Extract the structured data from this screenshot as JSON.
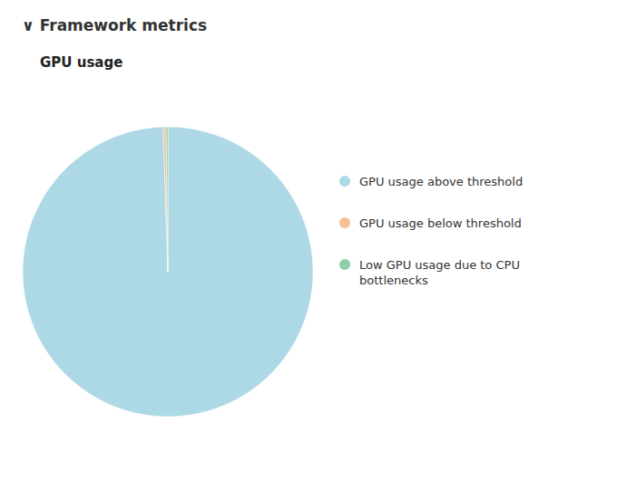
{
  "chart_data": {
    "type": "pie",
    "title": "GPU usage",
    "subtitle": "∨  Framework metrics",
    "categories": [
      "GPU usage above threshold",
      "GPU usage below threshold",
      "Low GPU usage due to CPU\nbottlenecks"
    ],
    "values": [
      99.5,
      0.3,
      0.2
    ],
    "colors": [
      "#add8e6",
      "#f5c096",
      "#8fcea8"
    ],
    "legend": "right"
  }
}
